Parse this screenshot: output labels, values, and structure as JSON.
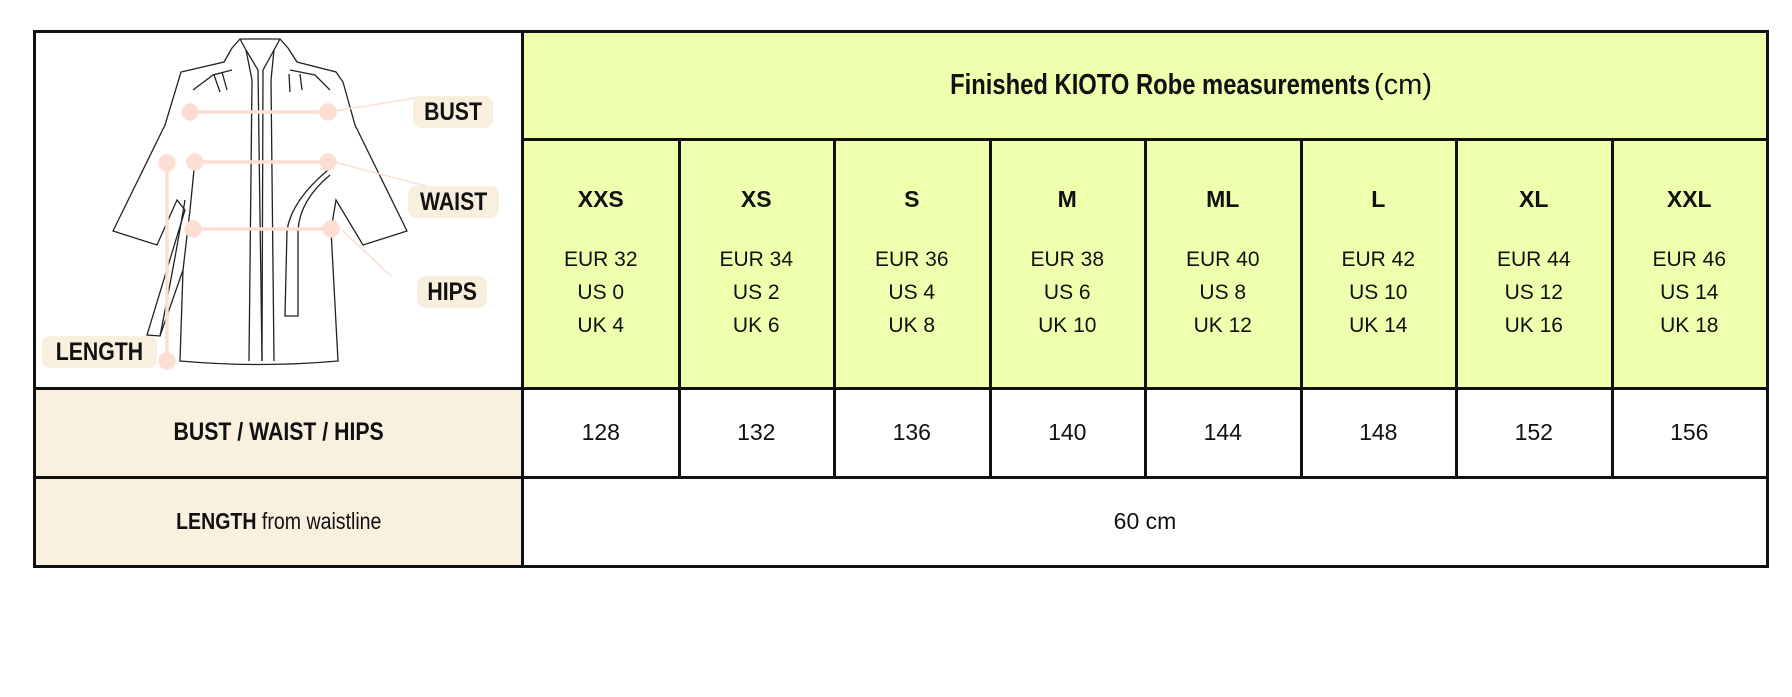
{
  "header": {
    "title_bold": "Finished KIOTO Robe measurements",
    "title_unit": "(cm)"
  },
  "diagram_labels": {
    "bust": "BUST",
    "waist": "WAIST",
    "hips": "HIPS",
    "length": "LENGTH"
  },
  "sizes": [
    {
      "code": "XXS",
      "eur": "EUR 32",
      "us": "US 0",
      "uk": "UK 4"
    },
    {
      "code": "XS",
      "eur": "EUR 34",
      "us": "US 2",
      "uk": "UK 6"
    },
    {
      "code": "S",
      "eur": "EUR 36",
      "us": "US 4",
      "uk": "UK 8"
    },
    {
      "code": "M",
      "eur": "EUR 38",
      "us": "US 6",
      "uk": "UK 10"
    },
    {
      "code": "ML",
      "eur": "EUR 40",
      "us": "US 8",
      "uk": "UK 12"
    },
    {
      "code": "L",
      "eur": "EUR 42",
      "us": "US 10",
      "uk": "UK 14"
    },
    {
      "code": "XL",
      "eur": "EUR 44",
      "us": "US 12",
      "uk": "UK 16"
    },
    {
      "code": "XXL",
      "eur": "EUR 46",
      "us": "US 14",
      "uk": "UK 18"
    }
  ],
  "rows": {
    "bwh_label": "BUST / WAIST / HIPS",
    "bwh_values": [
      "128",
      "132",
      "136",
      "140",
      "144",
      "148",
      "152",
      "156"
    ],
    "length_label_bold": "LENGTH",
    "length_label_rest": "from waistline",
    "length_value": "60 cm"
  },
  "colors": {
    "header_bg": "#eeffae",
    "label_bg": "#f9f0e0",
    "measure_line": "#fcded4"
  }
}
